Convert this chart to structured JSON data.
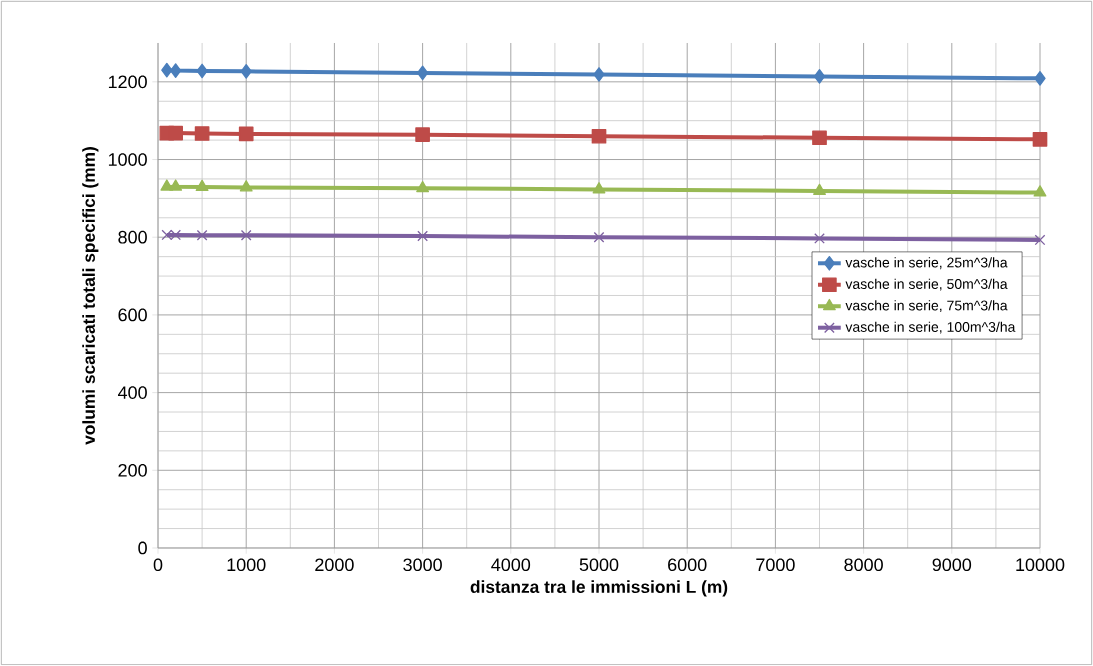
{
  "chart_data": {
    "type": "line",
    "xlabel": "distanza tra le immissioni L (m)",
    "ylabel": "volumi scaricati totali specifici (mm)",
    "x": [
      100,
      200,
      500,
      1000,
      3000,
      5000,
      7500,
      10000
    ],
    "series": [
      {
        "name": "vasche in serie, 25m^3/ha",
        "color": "#4a7ebb",
        "marker": "diamond",
        "values": [
          1230,
          1229,
          1228,
          1227,
          1223,
          1219,
          1214,
          1209
        ]
      },
      {
        "name": "vasche in serie, 50m^3/ha",
        "color": "#be4b48",
        "marker": "square",
        "values": [
          1068,
          1068,
          1067,
          1066,
          1064,
          1060,
          1056,
          1052
        ]
      },
      {
        "name": "vasche in serie, 75m^3/ha",
        "color": "#98b954",
        "marker": "triangle",
        "values": [
          930,
          930,
          929,
          928,
          926,
          923,
          919,
          915
        ]
      },
      {
        "name": "vasche in serie, 100m^3/ha",
        "color": "#7d60a0",
        "marker": "cross",
        "values": [
          806,
          806,
          805,
          805,
          803,
          800,
          797,
          793
        ]
      }
    ],
    "xlim": [
      0,
      10000
    ],
    "xticks": [
      0,
      1000,
      2000,
      3000,
      4000,
      5000,
      6000,
      7000,
      8000,
      9000,
      10000
    ],
    "ylim": [
      0,
      1300
    ],
    "yticks": [
      0,
      200,
      400,
      600,
      800,
      1000,
      1200
    ],
    "grid": true,
    "legend": "right",
    "line_style": "solid"
  }
}
